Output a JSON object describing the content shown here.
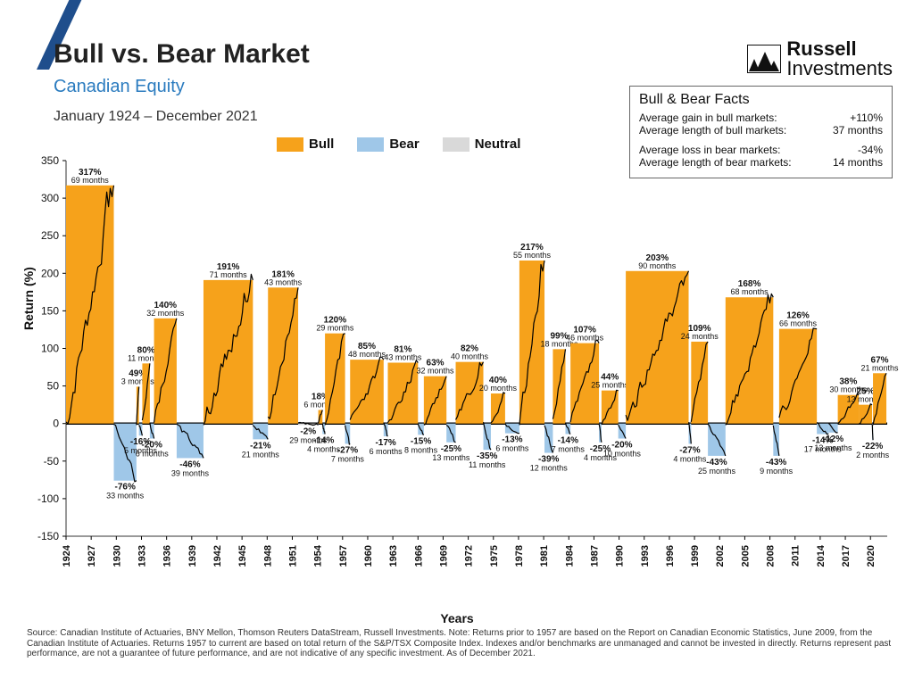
{
  "header": {
    "title": "Bull vs. Bear Market",
    "subtitle": "Canadian Equity",
    "daterange": "January 1924 – December 2021",
    "logo_brand": "Russell",
    "logo_sub": "Investments"
  },
  "legend": {
    "bull": {
      "label": "Bull",
      "color": "#f6a21b"
    },
    "bear": {
      "label": "Bear",
      "color": "#9fc7e8"
    },
    "neutral": {
      "label": "Neutral",
      "color": "#d9d9d9"
    }
  },
  "facts": {
    "title": "Bull & Bear Facts",
    "rows": [
      {
        "k": "Average gain in bull markets:",
        "v": "+110%"
      },
      {
        "k": "Average length of bull markets:",
        "v": "37 months"
      },
      {
        "k": "Average loss in bear markets:",
        "v": "-34%"
      },
      {
        "k": "Average length of bear markets:",
        "v": "14 months"
      }
    ]
  },
  "chart": {
    "type": "bar",
    "ylabel": "Return (%)",
    "xlabel": "Years",
    "ylim": [
      -150,
      350
    ],
    "ytick_step": 50,
    "x_start_year": 1924,
    "x_end_year": 2021,
    "xtick_step": 3,
    "background_color": "#ffffff",
    "axis_color": "#000000",
    "line_color": "#000000",
    "zero_line_width": 2.5,
    "periods": [
      {
        "start": 1924.0,
        "end": 1929.7,
        "type": "bull",
        "pct": "317%",
        "months": "69 months"
      },
      {
        "start": 1929.7,
        "end": 1932.4,
        "type": "bear",
        "pct": "-76%",
        "months": "33 months"
      },
      {
        "start": 1932.4,
        "end": 1932.7,
        "type": "bull",
        "pct": "49%",
        "months": "3 months"
      },
      {
        "start": 1932.7,
        "end": 1933.1,
        "type": "bear",
        "pct": "-16%",
        "months": "5 months"
      },
      {
        "start": 1933.1,
        "end": 1934.0,
        "type": "bull",
        "pct": "80%",
        "months": "11 months"
      },
      {
        "start": 1934.0,
        "end": 1934.5,
        "type": "bear",
        "pct": "-20%",
        "months": "6 months"
      },
      {
        "start": 1934.5,
        "end": 1937.2,
        "type": "bull",
        "pct": "140%",
        "months": "32 months"
      },
      {
        "start": 1937.2,
        "end": 1940.4,
        "type": "bear",
        "pct": "-46%",
        "months": "39 months"
      },
      {
        "start": 1940.4,
        "end": 1946.3,
        "type": "bull",
        "pct": "191%",
        "months": "71 months"
      },
      {
        "start": 1946.3,
        "end": 1948.1,
        "type": "bear",
        "pct": "-21%",
        "months": "21 months"
      },
      {
        "start": 1948.1,
        "end": 1951.7,
        "type": "bull",
        "pct": "181%",
        "months": "43 months"
      },
      {
        "start": 1951.7,
        "end": 1954.1,
        "type": "neutral",
        "pct": "-2%",
        "months": "29 months"
      },
      {
        "start": 1954.1,
        "end": 1954.6,
        "type": "bull",
        "pct": "18%",
        "months": "6 months"
      },
      {
        "start": 1954.6,
        "end": 1954.9,
        "type": "bear",
        "pct": "-14%",
        "months": "4 months"
      },
      {
        "start": 1954.9,
        "end": 1957.3,
        "type": "bull",
        "pct": "120%",
        "months": "29 months"
      },
      {
        "start": 1957.3,
        "end": 1957.9,
        "type": "bear",
        "pct": "-27%",
        "months": "7 months"
      },
      {
        "start": 1957.9,
        "end": 1961.9,
        "type": "bull",
        "pct": "85%",
        "months": "48 months"
      },
      {
        "start": 1961.9,
        "end": 1962.4,
        "type": "bear",
        "pct": "-17%",
        "months": "6 months"
      },
      {
        "start": 1962.4,
        "end": 1966.0,
        "type": "bull",
        "pct": "81%",
        "months": "43 months"
      },
      {
        "start": 1966.0,
        "end": 1966.7,
        "type": "bear",
        "pct": "-15%",
        "months": "8 months"
      },
      {
        "start": 1966.7,
        "end": 1969.4,
        "type": "bull",
        "pct": "63%",
        "months": "32 months"
      },
      {
        "start": 1969.4,
        "end": 1970.5,
        "type": "bear",
        "pct": "-25%",
        "months": "13 months"
      },
      {
        "start": 1970.5,
        "end": 1973.8,
        "type": "bull",
        "pct": "82%",
        "months": "40 months"
      },
      {
        "start": 1973.8,
        "end": 1974.7,
        "type": "bear",
        "pct": "-35%",
        "months": "11 months"
      },
      {
        "start": 1974.7,
        "end": 1976.4,
        "type": "bull",
        "pct": "40%",
        "months": "20 months"
      },
      {
        "start": 1976.4,
        "end": 1978.1,
        "type": "bear",
        "pct": "-13%",
        "months": "6 months"
      },
      {
        "start": 1978.1,
        "end": 1981.1,
        "type": "bull",
        "pct": "217%",
        "months": "55 months"
      },
      {
        "start": 1981.1,
        "end": 1982.1,
        "type": "bear",
        "pct": "-39%",
        "months": "12 months"
      },
      {
        "start": 1982.1,
        "end": 1983.6,
        "type": "bull",
        "pct": "99%",
        "months": "18 months"
      },
      {
        "start": 1983.6,
        "end": 1984.2,
        "type": "bear",
        "pct": "-14%",
        "months": "7 months"
      },
      {
        "start": 1984.2,
        "end": 1987.6,
        "type": "bull",
        "pct": "107%",
        "months": "46 months"
      },
      {
        "start": 1987.6,
        "end": 1987.9,
        "type": "bear",
        "pct": "-25%",
        "months": "4 months"
      },
      {
        "start": 1987.9,
        "end": 1989.9,
        "type": "bull",
        "pct": "44%",
        "months": "25 months"
      },
      {
        "start": 1989.9,
        "end": 1990.8,
        "type": "bear",
        "pct": "-20%",
        "months": "10 months"
      },
      {
        "start": 1990.8,
        "end": 1998.3,
        "type": "bull",
        "pct": "203%",
        "months": "90 months"
      },
      {
        "start": 1998.3,
        "end": 1998.6,
        "type": "bear",
        "pct": "-27%",
        "months": "4 months"
      },
      {
        "start": 1998.6,
        "end": 2000.6,
        "type": "bull",
        "pct": "109%",
        "months": "24 months"
      },
      {
        "start": 2000.6,
        "end": 2002.7,
        "type": "bear",
        "pct": "-43%",
        "months": "25 months"
      },
      {
        "start": 2002.7,
        "end": 2008.4,
        "type": "bull",
        "pct": "168%",
        "months": "68 months"
      },
      {
        "start": 2008.4,
        "end": 2009.1,
        "type": "bear",
        "pct": "-43%",
        "months": "9 months"
      },
      {
        "start": 2009.1,
        "end": 2013.6,
        "type": "bull",
        "pct": "126%",
        "months": "66 months"
      },
      {
        "start": 2013.6,
        "end": 2015.0,
        "type": "bear",
        "pct": "-14%",
        "months": "17 months"
      },
      {
        "start": 2015.0,
        "end": 2016.1,
        "type": "bear",
        "pct": "-12%",
        "months": "13 months"
      },
      {
        "start": 2016.1,
        "end": 2018.6,
        "type": "bull",
        "pct": "38%",
        "months": "30 months"
      },
      {
        "start": 2018.6,
        "end": 2020.2,
        "type": "bull",
        "pct": "25%",
        "months": "13 months"
      },
      {
        "start": 2020.2,
        "end": 2020.3,
        "type": "bear",
        "pct": "-22%",
        "months": "2 months"
      },
      {
        "start": 2020.3,
        "end": 2021.9,
        "type": "bull",
        "pct": "67%",
        "months": "21 months"
      }
    ]
  },
  "source": "Source: Canadian Institute of Actuaries, BNY Mellon, Thomson Reuters DataStream, Russell Investments. Note: Returns prior to 1957 are based on the Report on Canadian Economic Statistics, June 2009, from the Canadian Institute of Actuaries. Returns 1957 to current are based on total return of the S&P/TSX Composite Index. Indexes and/or benchmarks are unmanaged and cannot be invested in directly. Returns represent past performance, are not a guarantee of future performance, and are not indicative of any specific investment. As of December 2021."
}
